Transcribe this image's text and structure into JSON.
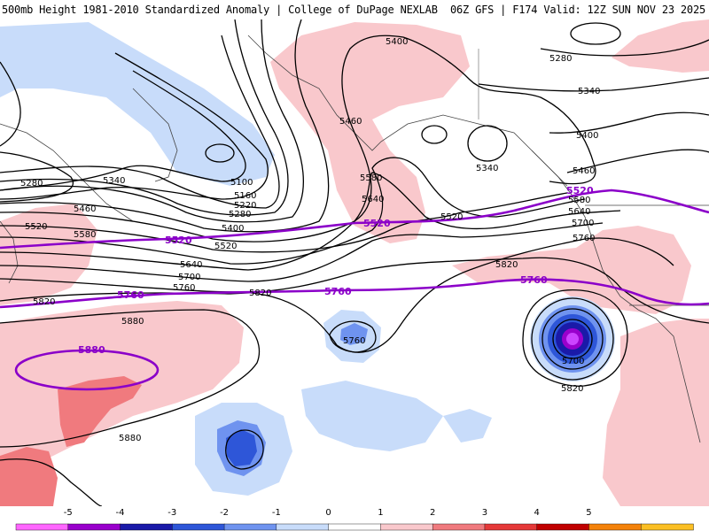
{
  "header": {
    "title_left": "500mb Height 1981-2010 Standardized Anomaly | College of DuPage NEXLAB",
    "title_right": "06Z GFS | F174 Valid: 12Z SUN NOV 23 2025"
  },
  "map": {
    "contour_labels": {
      "c5400_top": "5400",
      "c5280_ne": "5280",
      "c5340_ne": "5340",
      "c5460_ak": "5460",
      "c5400_bc": "5400",
      "c5460_bc": "5460",
      "c5340_center": "5340",
      "c5280_w": "5280",
      "c5340_w": "5340",
      "c5460_w": "5460",
      "c5100": "5100",
      "c5160": "5160",
      "c5220": "5220",
      "c5280_m": "5280",
      "c5400_m": "5400",
      "c5520_w": "5520",
      "c5580_w": "5580",
      "c5520_m": "5520",
      "c5580_m": "5580",
      "c5640_m": "5640",
      "c5520_c": "5520",
      "c5640_nw": "5640",
      "c5700_nw": "5700",
      "c5760_nw": "5760",
      "c5820_w": "5820",
      "c5820_mid": "5820",
      "c5580_e": "5580",
      "c5640_e": "5640",
      "c5700_e": "5700",
      "c5760_e": "5760",
      "c5820_e": "5820",
      "c5880_w": "5880",
      "c5880_sw": "5880",
      "c5760_low": "5760",
      "c5700_low": "5700",
      "c5820_low": "5820"
    },
    "reference_labels": {
      "r5520_w": "5520",
      "r5520_m": "5520",
      "r5520_e": "5520",
      "r5760_w": "5760",
      "r5760_m": "5760",
      "r5760_e": "5760",
      "r5880": "5880"
    }
  },
  "colorbar": {
    "ticks": [
      "-5",
      "-4",
      "-3",
      "-2",
      "-1",
      "0",
      "1",
      "2",
      "3",
      "4",
      "5"
    ],
    "colors": [
      "#ff66ff",
      "#9900cc",
      "#1a1aa8",
      "#2e56d8",
      "#6f93ef",
      "#c8dcfa",
      "#ffffff",
      "#f9c8cc",
      "#f07a7e",
      "#e53838",
      "#c00000",
      "#f4820a",
      "#fbbf24"
    ]
  },
  "colors": {
    "contour": "#000000",
    "reference": "#8b00c9",
    "positive_light": "#f9c8cc",
    "positive_mid": "#f07a7e",
    "negative_light": "#c8dcfa",
    "negative_mid": "#6f93ef",
    "negative_strong": "#2e56d8",
    "negative_deep": "#1a1aa8",
    "purple_core": "#cc44ff",
    "coast": "#444444"
  }
}
